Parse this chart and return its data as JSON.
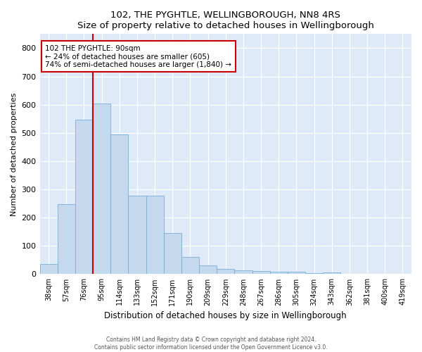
{
  "title": "102, THE PYGHTLE, WELLINGBOROUGH, NN8 4RS",
  "subtitle": "Size of property relative to detached houses in Wellingborough",
  "xlabel": "Distribution of detached houses by size in Wellingborough",
  "ylabel": "Number of detached properties",
  "bar_color": "#c5d9ee",
  "bar_edge_color": "#7aaed4",
  "background_color": "#deeaf7",
  "categories": [
    "38sqm",
    "57sqm",
    "76sqm",
    "95sqm",
    "114sqm",
    "133sqm",
    "152sqm",
    "171sqm",
    "190sqm",
    "209sqm",
    "229sqm",
    "248sqm",
    "267sqm",
    "286sqm",
    "305sqm",
    "324sqm",
    "343sqm",
    "362sqm",
    "381sqm",
    "400sqm",
    "419sqm"
  ],
  "values": [
    35,
    248,
    548,
    605,
    495,
    277,
    277,
    145,
    60,
    30,
    18,
    13,
    10,
    8,
    8,
    3,
    5,
    2,
    2,
    1,
    2
  ],
  "ylim": [
    0,
    850
  ],
  "yticks": [
    0,
    100,
    200,
    300,
    400,
    500,
    600,
    700,
    800
  ],
  "property_line_color": "#cc0000",
  "annotation_text_line1": "102 THE PYGHTLE: 90sqm",
  "annotation_text_line2": "← 24% of detached houses are smaller (605)",
  "annotation_text_line3": "74% of semi-detached houses are larger (1,840) →",
  "annotation_box_color": "#cc0000",
  "footer_line1": "Contains HM Land Registry data © Crown copyright and database right 2024.",
  "footer_line2": "Contains public sector information licensed under the Open Government Licence v3.0."
}
